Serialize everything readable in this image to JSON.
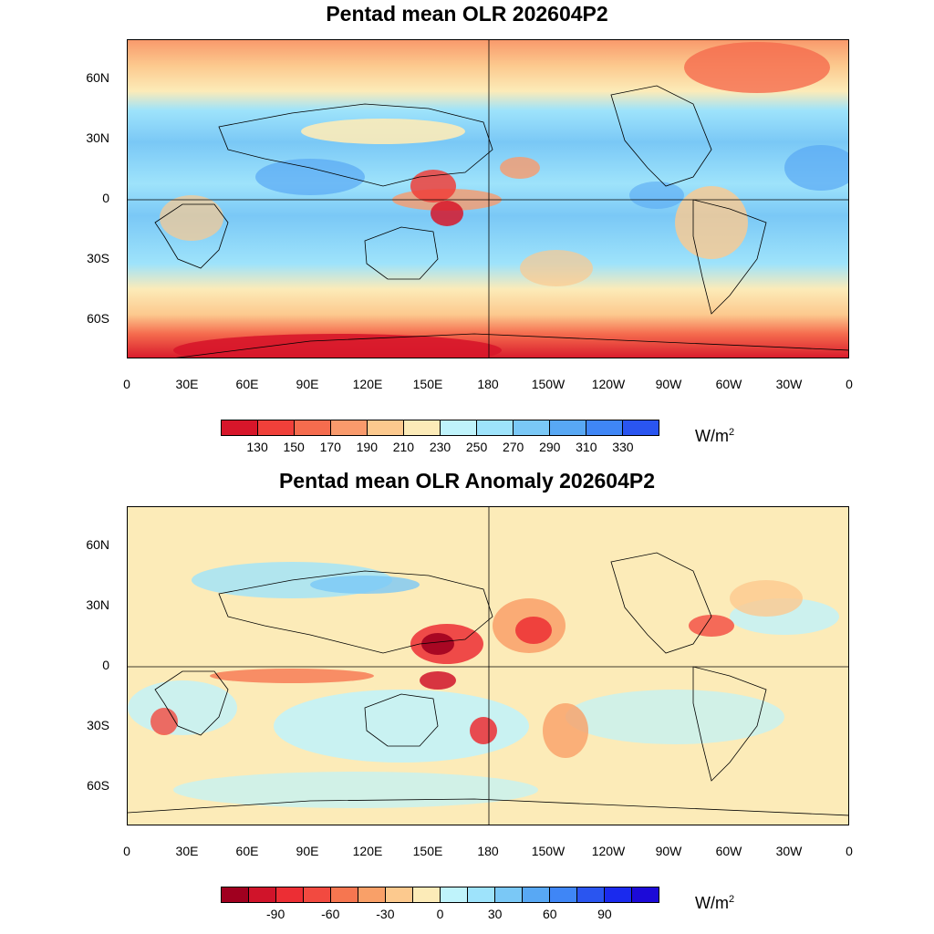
{
  "panels": [
    {
      "title": "Pentad mean OLR 202604P2",
      "colorbar": {
        "colors": [
          "#d7162a",
          "#f0403a",
          "#f56c4e",
          "#f99a6c",
          "#fcc98e",
          "#fcebb8",
          "#bff3fb",
          "#9ee3fb",
          "#7ac8f6",
          "#58a8f4",
          "#3f86f6",
          "#2a55f0"
        ],
        "labels": [
          "130",
          "150",
          "170",
          "190",
          "210",
          "230",
          "250",
          "270",
          "290",
          "310",
          "330"
        ],
        "units": "W/m",
        "units_exp": "2"
      }
    },
    {
      "title": "Pentad mean OLR Anomaly 202604P2",
      "colorbar": {
        "colors": [
          "#a0001f",
          "#d0142a",
          "#ec2e34",
          "#f24a40",
          "#f67650",
          "#f9a068",
          "#fcc98e",
          "#fcebb8",
          "#bff3fb",
          "#9ee3fb",
          "#7ac8f6",
          "#58a8f4",
          "#3f86f6",
          "#2a55f0",
          "#1a2aee",
          "#1c0ad8"
        ],
        "labels": [
          "-90",
          "-60",
          "-30",
          "0",
          "30",
          "60",
          "90"
        ],
        "units": "W/m",
        "units_exp": "2"
      }
    }
  ],
  "axes": {
    "lat_labels": [
      "60N",
      "30N",
      "0",
      "30S",
      "60S"
    ],
    "lon_labels": [
      "0",
      "30E",
      "60E",
      "90E",
      "120E",
      "150E",
      "180",
      "150W",
      "120W",
      "90W",
      "60W",
      "30W",
      "0"
    ]
  }
}
